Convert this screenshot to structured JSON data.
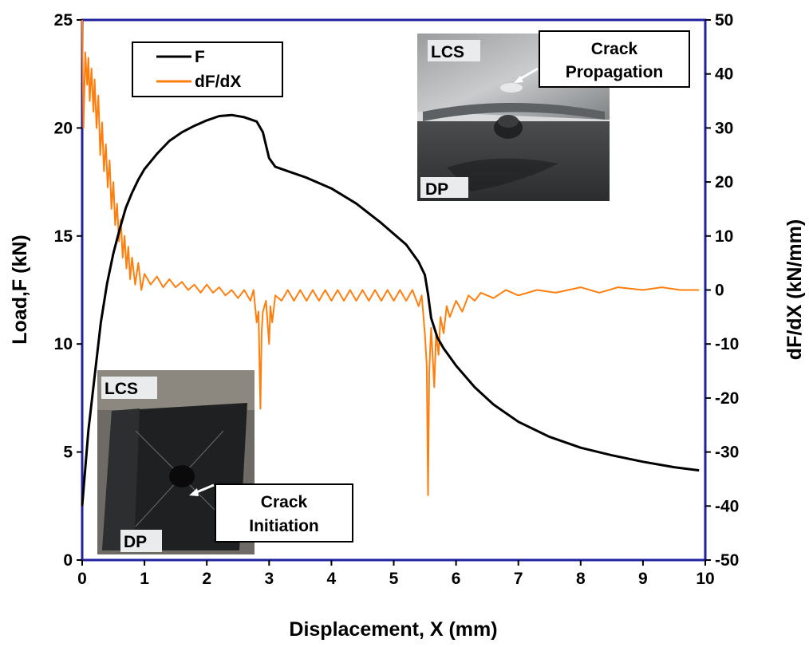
{
  "chart_data": {
    "type": "line",
    "xlabel": "Displacement, X (mm)",
    "ylabel_left": "Load,F (kN)",
    "ylabel_right": "dF/dX (kN/mm)",
    "xlim": [
      0,
      10
    ],
    "ylim_left": [
      0,
      25
    ],
    "ylim_right": [
      -50,
      50
    ],
    "x_ticks": [
      "0",
      "1",
      "2",
      "3",
      "4",
      "5",
      "6",
      "7",
      "8",
      "9",
      "10"
    ],
    "left_ticks": [
      "0",
      "5",
      "10",
      "15",
      "20",
      "25"
    ],
    "right_ticks": [
      "-50",
      "-40",
      "-30",
      "-20",
      "-10",
      "0",
      "10",
      "20",
      "30",
      "40",
      "50"
    ],
    "grid": false,
    "legend_position": "top-left",
    "series": [
      {
        "name": "F",
        "axis": "left",
        "color": "#000000",
        "points": [
          [
            0.0,
            2.5
          ],
          [
            0.1,
            6.0
          ],
          [
            0.2,
            8.5
          ],
          [
            0.3,
            11.0
          ],
          [
            0.4,
            12.8
          ],
          [
            0.5,
            14.2
          ],
          [
            0.6,
            15.3
          ],
          [
            0.7,
            16.3
          ],
          [
            0.8,
            17.0
          ],
          [
            0.9,
            17.6
          ],
          [
            1.0,
            18.1
          ],
          [
            1.2,
            18.8
          ],
          [
            1.4,
            19.4
          ],
          [
            1.6,
            19.8
          ],
          [
            1.8,
            20.1
          ],
          [
            2.0,
            20.35
          ],
          [
            2.2,
            20.55
          ],
          [
            2.4,
            20.6
          ],
          [
            2.6,
            20.5
          ],
          [
            2.8,
            20.3
          ],
          [
            2.9,
            19.8
          ],
          [
            3.0,
            18.6
          ],
          [
            3.1,
            18.2
          ],
          [
            3.3,
            18.0
          ],
          [
            3.6,
            17.7
          ],
          [
            4.0,
            17.2
          ],
          [
            4.4,
            16.5
          ],
          [
            4.8,
            15.6
          ],
          [
            5.2,
            14.6
          ],
          [
            5.4,
            13.8
          ],
          [
            5.5,
            13.2
          ],
          [
            5.55,
            12.3
          ],
          [
            5.6,
            11.2
          ],
          [
            5.7,
            10.3
          ],
          [
            5.8,
            9.8
          ],
          [
            6.0,
            9.0
          ],
          [
            6.3,
            8.0
          ],
          [
            6.6,
            7.2
          ],
          [
            7.0,
            6.4
          ],
          [
            7.5,
            5.7
          ],
          [
            8.0,
            5.2
          ],
          [
            8.5,
            4.85
          ],
          [
            9.0,
            4.55
          ],
          [
            9.5,
            4.3
          ],
          [
            9.9,
            4.15
          ]
        ]
      },
      {
        "name": "dF/dX",
        "axis": "right",
        "color": "#ff7f0e",
        "points": [
          [
            0.0,
            50
          ],
          [
            0.02,
            30
          ],
          [
            0.05,
            44
          ],
          [
            0.08,
            38
          ],
          [
            0.1,
            43
          ],
          [
            0.12,
            35
          ],
          [
            0.15,
            41
          ],
          [
            0.18,
            33
          ],
          [
            0.2,
            39
          ],
          [
            0.23,
            30
          ],
          [
            0.26,
            36
          ],
          [
            0.29,
            25
          ],
          [
            0.32,
            31
          ],
          [
            0.35,
            22
          ],
          [
            0.38,
            27
          ],
          [
            0.41,
            19
          ],
          [
            0.44,
            24
          ],
          [
            0.47,
            15
          ],
          [
            0.5,
            20
          ],
          [
            0.53,
            12
          ],
          [
            0.56,
            16
          ],
          [
            0.59,
            9
          ],
          [
            0.62,
            13
          ],
          [
            0.65,
            6
          ],
          [
            0.68,
            10
          ],
          [
            0.71,
            4
          ],
          [
            0.74,
            8
          ],
          [
            0.77,
            2
          ],
          [
            0.8,
            6
          ],
          [
            0.85,
            1
          ],
          [
            0.9,
            5
          ],
          [
            0.95,
            0
          ],
          [
            1.0,
            3
          ],
          [
            1.1,
            1
          ],
          [
            1.2,
            2.5
          ],
          [
            1.3,
            0.5
          ],
          [
            1.4,
            2
          ],
          [
            1.5,
            0.5
          ],
          [
            1.6,
            1.5
          ],
          [
            1.7,
            0
          ],
          [
            1.8,
            1
          ],
          [
            1.9,
            -0.5
          ],
          [
            2.0,
            1
          ],
          [
            2.1,
            -0.5
          ],
          [
            2.2,
            0.5
          ],
          [
            2.3,
            -1
          ],
          [
            2.4,
            0
          ],
          [
            2.5,
            -1.5
          ],
          [
            2.6,
            0
          ],
          [
            2.7,
            -2
          ],
          [
            2.75,
            0
          ],
          [
            2.8,
            -6
          ],
          [
            2.83,
            -4
          ],
          [
            2.86,
            -22
          ],
          [
            2.88,
            -8
          ],
          [
            2.9,
            -4
          ],
          [
            2.95,
            -2
          ],
          [
            3.0,
            -10
          ],
          [
            3.02,
            -3
          ],
          [
            3.05,
            -6
          ],
          [
            3.1,
            -1
          ],
          [
            3.2,
            -2
          ],
          [
            3.3,
            0
          ],
          [
            3.4,
            -2
          ],
          [
            3.5,
            0
          ],
          [
            3.6,
            -2
          ],
          [
            3.7,
            0
          ],
          [
            3.8,
            -2
          ],
          [
            3.9,
            0
          ],
          [
            4.0,
            -2
          ],
          [
            4.1,
            0
          ],
          [
            4.2,
            -2
          ],
          [
            4.3,
            0
          ],
          [
            4.4,
            -2
          ],
          [
            4.5,
            0
          ],
          [
            4.6,
            -2
          ],
          [
            4.7,
            0
          ],
          [
            4.8,
            -2
          ],
          [
            4.9,
            0
          ],
          [
            5.0,
            -2
          ],
          [
            5.1,
            0
          ],
          [
            5.2,
            -2
          ],
          [
            5.3,
            0
          ],
          [
            5.4,
            -3
          ],
          [
            5.45,
            -1
          ],
          [
            5.5,
            -8
          ],
          [
            5.53,
            -14
          ],
          [
            5.55,
            -38
          ],
          [
            5.57,
            -15
          ],
          [
            5.6,
            -7
          ],
          [
            5.65,
            -18
          ],
          [
            5.68,
            -8
          ],
          [
            5.72,
            -12
          ],
          [
            5.75,
            -5
          ],
          [
            5.8,
            -8
          ],
          [
            5.85,
            -3
          ],
          [
            5.9,
            -5
          ],
          [
            6.0,
            -2
          ],
          [
            6.1,
            -4
          ],
          [
            6.2,
            -1
          ],
          [
            6.3,
            -2
          ],
          [
            6.4,
            -0.5
          ],
          [
            6.6,
            -1.5
          ],
          [
            6.8,
            0
          ],
          [
            7.0,
            -1
          ],
          [
            7.3,
            0
          ],
          [
            7.6,
            -0.5
          ],
          [
            8.0,
            0.5
          ],
          [
            8.3,
            -0.5
          ],
          [
            8.6,
            0.5
          ],
          [
            9.0,
            0
          ],
          [
            9.3,
            0.5
          ],
          [
            9.6,
            0
          ],
          [
            9.9,
            0
          ]
        ]
      }
    ],
    "annotations": [
      {
        "text": "Crack Propagation",
        "inset": "top-right photo"
      },
      {
        "text": "Crack Initiation",
        "inset": "bottom-left photo"
      }
    ]
  },
  "insets": {
    "top": {
      "label_top": "LCS",
      "label_bottom": "DP",
      "callout_line1": "Crack",
      "callout_line2": "Propagation"
    },
    "bottom": {
      "label_top": "LCS",
      "label_bottom": "DP",
      "callout_line1": "Crack",
      "callout_line2": "Initiation"
    }
  },
  "colors": {
    "frame": "#2020a0",
    "load": "#000000",
    "derivative": "#ff7f0e"
  }
}
